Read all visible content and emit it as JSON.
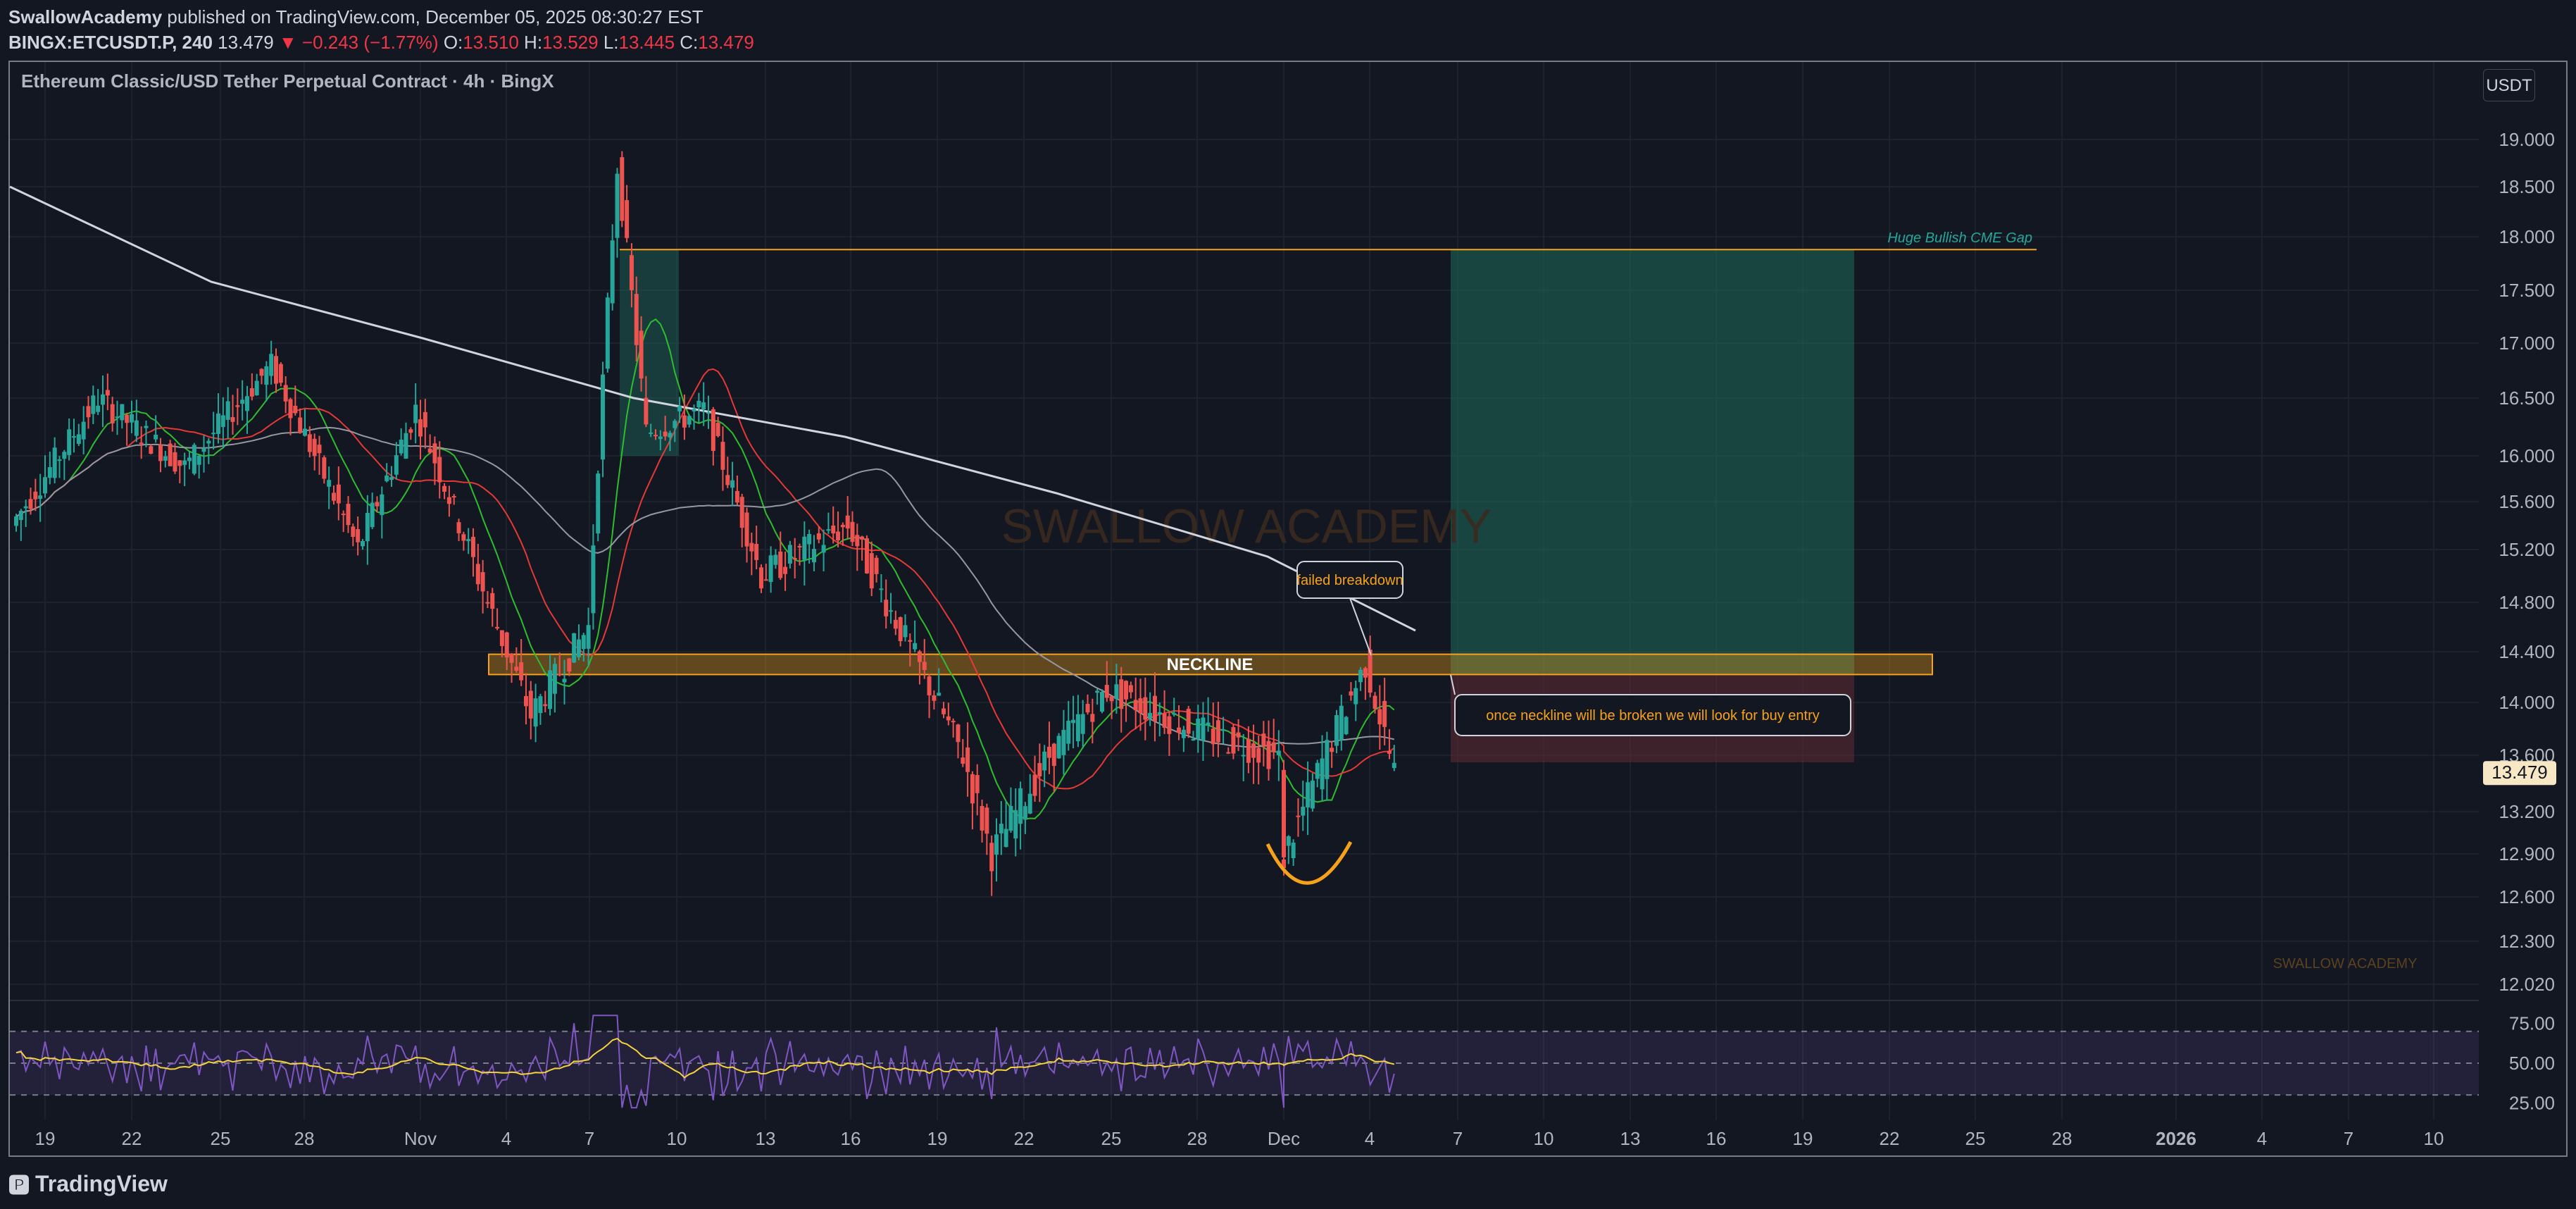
{
  "header": {
    "author": "SwallowAcademy",
    "published": " published on TradingView.com, December 05, 2025 08:30:27 EST",
    "symbol": "BINGX:ETCUSDT.P, 240",
    "last": "13.479",
    "change": "▼ −0.243 (−1.77%)",
    "o_label": "O:",
    "o": "13.510",
    "h_label": "H:",
    "h": "13.529",
    "l_label": "L:",
    "l": "13.445",
    "c_label": "C:",
    "c": "13.479"
  },
  "symbol_title": "Ethereum Classic/USD Tether Perpetual Contract · 4h · BingX",
  "currency": "USDT",
  "footer": {
    "logo_text": "TradingView"
  },
  "colors": {
    "background": "#131722",
    "grid": "#1e222d",
    "up": "#26a69a",
    "down": "#ef5350",
    "neckline": "#f7a21b",
    "target_zone": "#1f6b5a",
    "stop_zone": "#5a2a33",
    "ma_white": "#d1d4dc",
    "ma_red": "#e53935",
    "ma_green": "#2ebd2e",
    "rsi": "#7e57c2",
    "rsi_ma": "#f5d33b",
    "price_tag": "#f7e7c5"
  },
  "chart_data": {
    "type": "candlestick",
    "title": "Ethereum Classic/USD Tether Perpetual Contract · 4h · BingX",
    "price_axis": {
      "ticks": [
        "19.000",
        "18.500",
        "18.000",
        "17.500",
        "17.000",
        "16.500",
        "16.000",
        "15.600",
        "15.200",
        "14.800",
        "14.400",
        "14.000",
        "13.600",
        "13.200",
        "12.900",
        "12.600",
        "12.300",
        "12.020"
      ],
      "last_price": "13.479"
    },
    "time_axis": {
      "ticks": [
        "19",
        "22",
        "25",
        "28",
        "Nov",
        "4",
        "7",
        "10",
        "13",
        "16",
        "19",
        "22",
        "25",
        "28",
        "Dec",
        "4",
        "7",
        "10",
        "13",
        "16",
        "19",
        "22",
        "25",
        "28",
        "2026",
        "4",
        "7",
        "10"
      ]
    },
    "price_path_approx": [
      {
        "date": "Oct 18",
        "close": 15.4
      },
      {
        "date": "Oct 21",
        "close": 16.5
      },
      {
        "date": "Oct 24",
        "close": 15.9
      },
      {
        "date": "Oct 27",
        "close": 16.8
      },
      {
        "date": "Oct 30",
        "close": 15.2
      },
      {
        "date": "Nov 1",
        "close": 16.4
      },
      {
        "date": "Nov 3",
        "close": 15.1
      },
      {
        "date": "Nov 5",
        "close": 13.9
      },
      {
        "date": "Nov 7",
        "close": 14.6
      },
      {
        "date": "Nov 8",
        "close": 18.7
      },
      {
        "date": "Nov 9",
        "close": 16.2
      },
      {
        "date": "Nov 11",
        "close": 16.4
      },
      {
        "date": "Nov 13",
        "close": 15.0
      },
      {
        "date": "Nov 16",
        "close": 15.4
      },
      {
        "date": "Nov 18",
        "close": 14.5
      },
      {
        "date": "Nov 20",
        "close": 13.6
      },
      {
        "date": "Nov 21",
        "close": 12.9
      },
      {
        "date": "Nov 23",
        "close": 13.6
      },
      {
        "date": "Nov 25",
        "close": 14.1
      },
      {
        "date": "Nov 28",
        "close": 13.8
      },
      {
        "date": "Dec 1",
        "close": 13.6
      },
      {
        "date": "Dec 1",
        "close": 12.8
      },
      {
        "date": "Dec 3",
        "close": 13.8
      },
      {
        "date": "Dec 4",
        "close": 14.3
      },
      {
        "date": "Dec 5",
        "close": 13.479
      }
    ],
    "neckline": {
      "label": "NECKLINE",
      "from": 14.22,
      "to": 14.38
    },
    "cme_gap": {
      "label": "Huge Bullish CME Gap",
      "level": 17.88
    },
    "target_zone": {
      "from": 14.22,
      "to": 17.88
    },
    "stop_zone": {
      "from": 13.55,
      "to": 14.22
    },
    "annotations": [
      {
        "text": "failed breakdown"
      },
      {
        "text": "once neckline will be broken we will look for buy entry"
      }
    ],
    "watermark": "SWALLOW ACADEMY",
    "watermark_small": "SWALLOW ACADEMY",
    "rsi": {
      "ticks": [
        "75.00",
        "50.00",
        "25.00"
      ]
    },
    "grid": true,
    "legend": "none"
  }
}
